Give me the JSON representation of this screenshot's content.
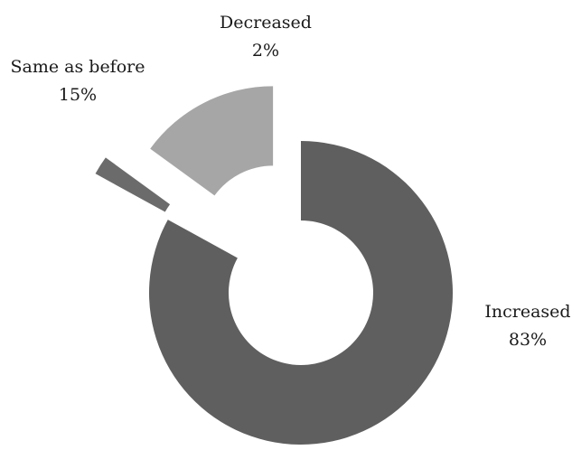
{
  "chart_data": {
    "type": "pie",
    "variant": "donut",
    "title": "",
    "legend": "none",
    "series": [
      {
        "slices": [
          {
            "label": "Increased",
            "value": 83,
            "value_label": "83%",
            "color": "#5f5f5f"
          },
          {
            "label": "Decreased",
            "value": 2,
            "value_label": "2%",
            "color": "#6b6b6b"
          },
          {
            "label": "Same as before",
            "value": 15,
            "value_label": "15%",
            "color": "#a6a6a6"
          }
        ]
      }
    ]
  },
  "colors": {
    "background": "#ffffff",
    "text": "#1a1a1a"
  }
}
